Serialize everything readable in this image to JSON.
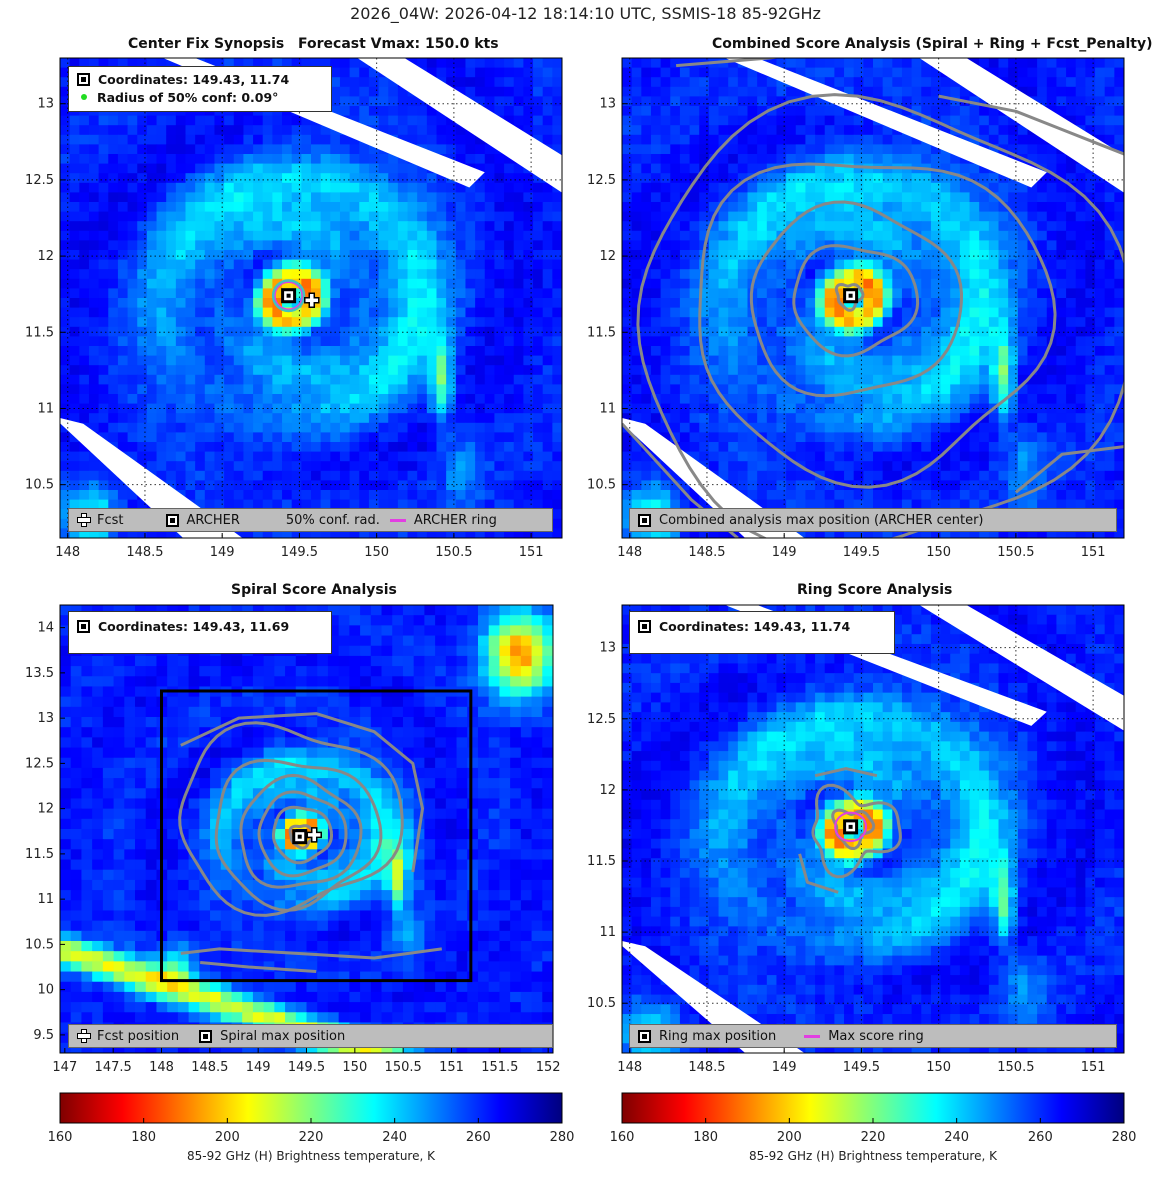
{
  "suptitle": "2026_04W: 2026-04-12 18:14:10 UTC, SSMIS-18 85-92GHz",
  "colors": {
    "colormap": [
      "#7f0000",
      "#ff0000",
      "#ff7f00",
      "#ffff00",
      "#7fff7f",
      "#00ffff",
      "#007fff",
      "#0000ff",
      "#00007f"
    ],
    "contour": "#888888",
    "ring": "#e23ee2",
    "missing": "#ffffff"
  },
  "panels": {
    "tl": {
      "title_left": "Center Fix Synopsis",
      "title_right": "Forecast Vmax: 150.0 kts",
      "info": {
        "coordinates": "Coordinates: 149.43, 11.74",
        "radius": "Radius of 50% conf: 0.09°"
      },
      "legend": {
        "fcst": "Fcst",
        "archer": "ARCHER",
        "conf": "50% conf. rad.",
        "ring": "ARCHER ring"
      }
    },
    "tr": {
      "title": "Combined Score Analysis (Spiral + Ring + Fcst_Penalty)",
      "legend": {
        "max": "Combined analysis max position (ARCHER center)"
      }
    },
    "bl": {
      "title": "Spiral Score Analysis",
      "info": {
        "coordinates": "Coordinates: 149.43, 11.69"
      },
      "legend": {
        "fcst": "Fcst position",
        "spiral": "Spiral max position"
      }
    },
    "br": {
      "title": "Ring Score Analysis",
      "info": {
        "coordinates": "Coordinates: 149.43, 11.74"
      },
      "legend": {
        "ring": "Ring max position",
        "score": "Max score ring"
      }
    }
  },
  "colorbar": {
    "label": "85-92 GHz (H) Brightness temperature, K",
    "ticks": [
      "160",
      "180",
      "200",
      "220",
      "240",
      "260",
      "280"
    ],
    "range": [
      160,
      280
    ]
  },
  "chart_data": [
    {
      "type": "heatmap",
      "title": "Center Fix Synopsis    Forecast Vmax: 150.0 kts",
      "x_ticks": [
        "148",
        "148.5",
        "149",
        "149.5",
        "150",
        "150.5",
        "151"
      ],
      "y_ticks": [
        "10.5",
        "11",
        "11.5",
        "12",
        "12.5",
        "13"
      ],
      "xlim": [
        147.95,
        151.2
      ],
      "ylim": [
        10.15,
        13.3
      ],
      "archer_center": [
        149.43,
        11.74
      ],
      "forecast_position": [
        149.58,
        11.71
      ],
      "conf_radius_deg": 0.09,
      "grid": true
    },
    {
      "type": "heatmap",
      "title": "Combined Score Analysis (Spiral + Ring + Fcst_Penalty)",
      "x_ticks": [
        "148",
        "148.5",
        "149",
        "149.5",
        "150",
        "150.5",
        "151"
      ],
      "y_ticks": [
        "10.5",
        "11",
        "11.5",
        "12",
        "12.5",
        "13"
      ],
      "xlim": [
        147.95,
        151.2
      ],
      "ylim": [
        10.15,
        13.3
      ],
      "max_position": [
        149.43,
        11.74
      ],
      "grid": true
    },
    {
      "type": "heatmap",
      "title": "Spiral Score Analysis",
      "x_ticks": [
        "147",
        "147.5",
        "148",
        "148.5",
        "149",
        "149.5",
        "150",
        "150.5",
        "151",
        "151.5",
        "152"
      ],
      "y_ticks": [
        "9.5",
        "10",
        "10.5",
        "11",
        "11.5",
        "12",
        "12.5",
        "13",
        "13.5",
        "14"
      ],
      "xlim": [
        146.95,
        152.05
      ],
      "ylim": [
        9.3,
        14.25
      ],
      "spiral_max": [
        149.43,
        11.69
      ],
      "forecast_position": [
        149.58,
        11.71
      ],
      "search_box": {
        "x": [
          148.0,
          151.2
        ],
        "y": [
          10.1,
          13.3
        ]
      },
      "grid": false
    },
    {
      "type": "heatmap",
      "title": "Ring Score Analysis",
      "x_ticks": [
        "148",
        "148.5",
        "149",
        "149.5",
        "150",
        "150.5",
        "151"
      ],
      "y_ticks": [
        "10.5",
        "11",
        "11.5",
        "12",
        "12.5",
        "13"
      ],
      "xlim": [
        147.95,
        151.2
      ],
      "ylim": [
        10.15,
        13.3
      ],
      "ring_max": [
        149.43,
        11.74
      ],
      "grid": true
    }
  ]
}
